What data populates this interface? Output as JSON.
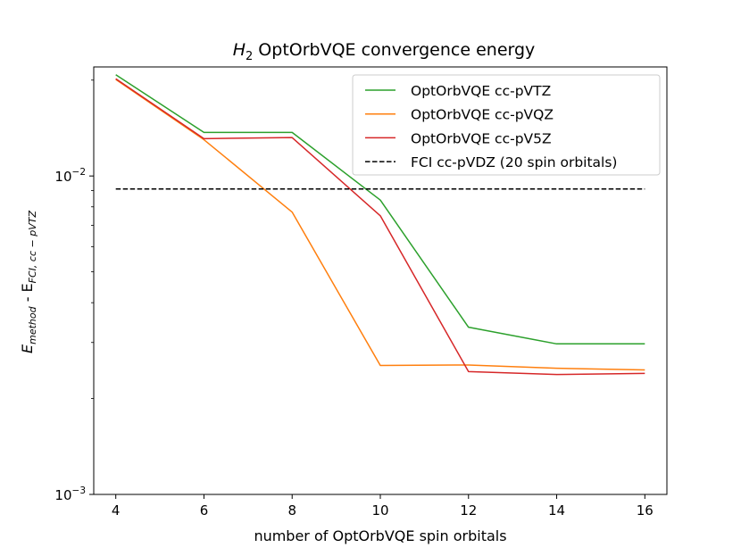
{
  "chart_data": {
    "type": "line",
    "title_base": "H",
    "title_sub": "2",
    "title_rest": " OptOrbVQE convergence energy",
    "xlabel": "number of OptOrbVQE spin orbitals",
    "ylabel_base": "E",
    "ylabel_sub1": "method",
    "ylabel_mid": " - E",
    "ylabel_sub2": "FCI, cc − pVTZ",
    "yscale": "log",
    "xlim": [
      3.5,
      16.5
    ],
    "ylim": [
      0.001,
      0.022
    ],
    "xticks": [
      4,
      6,
      8,
      10,
      12,
      14,
      16
    ],
    "yticks": [
      {
        "value": 0.001,
        "base": "10",
        "exp": "−3"
      },
      {
        "value": 0.01,
        "base": "10",
        "exp": "−2"
      }
    ],
    "x": [
      4,
      6,
      8,
      10,
      12,
      14,
      16
    ],
    "series": [
      {
        "name": "OptOrbVQE cc-pVTZ",
        "color": "#2ca02c",
        "dash": "solid",
        "values": [
          0.0208,
          0.0137,
          0.0137,
          0.0084,
          0.00335,
          0.00297,
          0.00297
        ]
      },
      {
        "name": "OptOrbVQE cc-pVQZ",
        "color": "#ff7f0e",
        "dash": "solid",
        "values": [
          0.0201,
          0.013,
          0.0077,
          0.00254,
          0.00255,
          0.00249,
          0.00246
        ]
      },
      {
        "name": "OptOrbVQE cc-pV5Z",
        "color": "#d62728",
        "dash": "solid",
        "values": [
          0.0202,
          0.0131,
          0.0132,
          0.0075,
          0.00243,
          0.00238,
          0.0024
        ]
      },
      {
        "name": "FCI cc-pVDZ (20 spin orbitals)",
        "color": "#000000",
        "dash": "dashed",
        "values": [
          0.0091,
          0.0091,
          0.0091,
          0.0091,
          0.0091,
          0.0091,
          0.0091
        ]
      }
    ],
    "legend_position": "top-right"
  }
}
